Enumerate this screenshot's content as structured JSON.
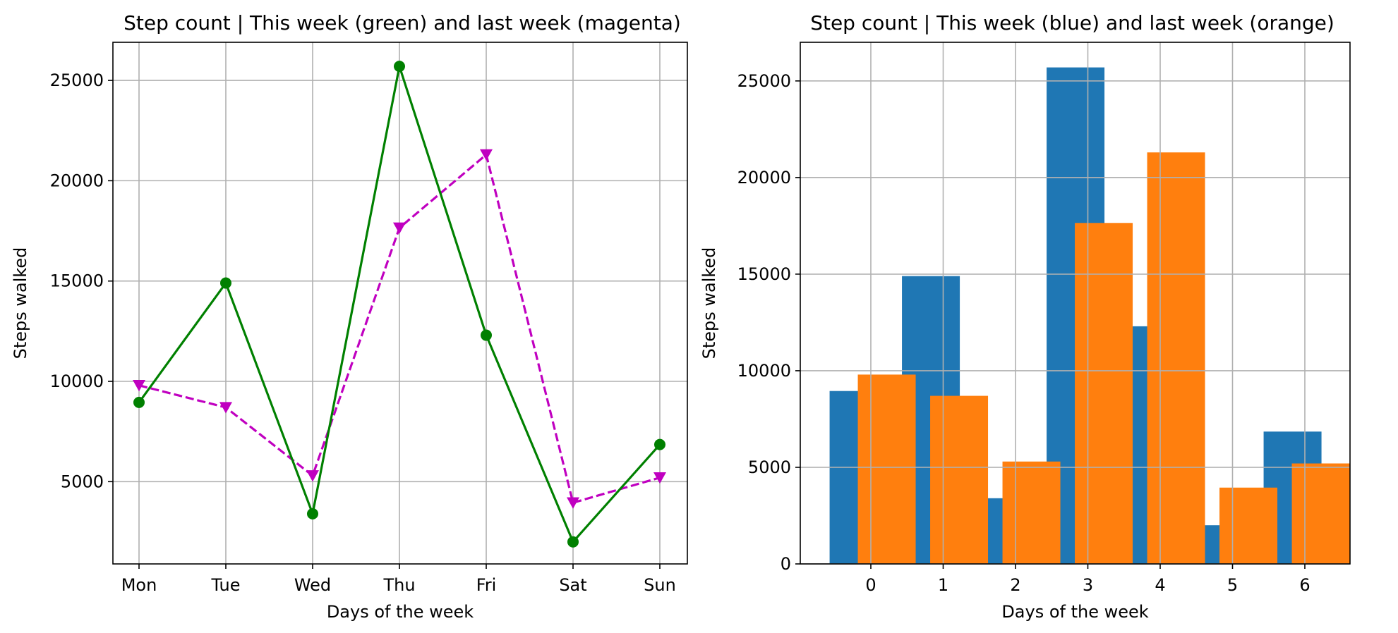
{
  "colors": {
    "this_week_line": "#008000",
    "last_week_line": "#c000c0",
    "this_week_bar": "#1f77b4",
    "last_week_bar": "#ff7f0e",
    "grid": "#b0b0b0",
    "axis": "#000000"
  },
  "chart_data": [
    {
      "type": "line",
      "title": "Step count | This week (green) and last week (magenta)",
      "xlabel": "Days of the week",
      "ylabel": "Steps walked",
      "categories": [
        "Mon",
        "Tue",
        "Wed",
        "Thu",
        "Fri",
        "Sat",
        "Sun"
      ],
      "yticks": [
        "5000",
        "10000",
        "15000",
        "20000",
        "25000"
      ],
      "ylim": [
        900,
        26900
      ],
      "grid": true,
      "series": [
        {
          "values": [
            8950,
            14900,
            3400,
            25700,
            12300,
            2000,
            6850
          ],
          "color": "green",
          "marker": "circle",
          "linestyle": "solid"
        },
        {
          "values": [
            9800,
            8700,
            5300,
            17650,
            21300,
            3950,
            5200
          ],
          "color": "magenta",
          "marker": "triangle-down",
          "linestyle": "dashed"
        }
      ]
    },
    {
      "type": "bar",
      "title": "Step count | This week (blue) and last week (orange)",
      "xlabel": "Days of the week",
      "ylabel": "Steps walked",
      "categories": [
        "0",
        "1",
        "2",
        "3",
        "4",
        "5",
        "6"
      ],
      "yticks": [
        "0",
        "5000",
        "10000",
        "15000",
        "20000",
        "25000"
      ],
      "ylim": [
        0,
        27000
      ],
      "grid": true,
      "series": [
        {
          "values": [
            8950,
            14900,
            3400,
            25700,
            12300,
            2000,
            6850
          ],
          "color": "blue"
        },
        {
          "values": [
            9800,
            8700,
            5300,
            17650,
            21300,
            3950,
            5200
          ],
          "color": "orange"
        }
      ]
    }
  ]
}
